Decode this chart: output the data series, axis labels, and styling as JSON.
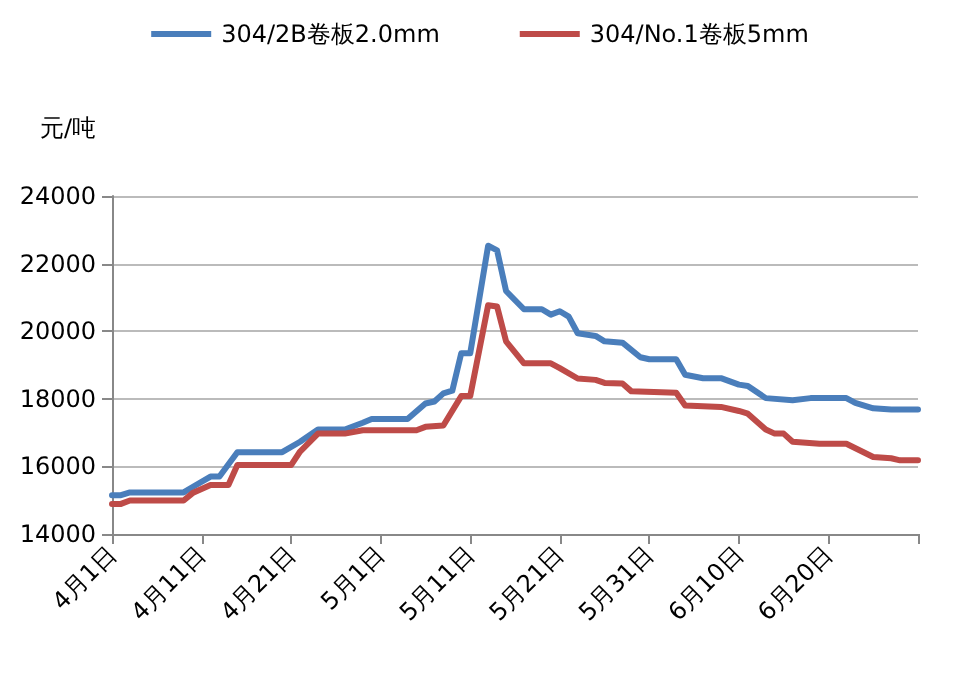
{
  "chart_data": {
    "type": "line",
    "ylabel": "元/吨",
    "legend": "top",
    "grid": "y",
    "marker": "none",
    "line_style": "solid",
    "ylim": [
      14000,
      24000
    ],
    "yticks": [
      14000,
      16000,
      18000,
      20000,
      22000,
      24000
    ],
    "xlim": [
      "--04-01",
      "--06-30"
    ],
    "xticks": [
      {
        "value": "--04-01",
        "label": "4月1日"
      },
      {
        "value": "--04-11",
        "label": "4月11日"
      },
      {
        "value": "--04-21",
        "label": "4月21日"
      },
      {
        "value": "--05-01",
        "label": "5月1日"
      },
      {
        "value": "--05-11",
        "label": "5月11日"
      },
      {
        "value": "--05-21",
        "label": "5月21日"
      },
      {
        "value": "--05-31",
        "label": "5月31日"
      },
      {
        "value": "--06-10",
        "label": "6月10日"
      },
      {
        "value": "--06-20",
        "label": "6月20日"
      },
      {
        "value": "--06-30",
        "label": null
      }
    ],
    "series": [
      {
        "name": "304/2B卷板2.0mm",
        "color": "#4a7ebb",
        "x": [
          "--04-01",
          "--04-02",
          "--04-03",
          "--04-09",
          "--04-10",
          "--04-12",
          "--04-13",
          "--04-15",
          "--04-20",
          "--04-22",
          "--04-24",
          "--04-27",
          "--04-29",
          "--04-30",
          "--05-04",
          "--05-06",
          "--05-07",
          "--05-08",
          "--05-09",
          "--05-10",
          "--05-11",
          "--05-13",
          "--05-14",
          "--05-15",
          "--05-17",
          "--05-19",
          "--05-20",
          "--05-21",
          "--05-22",
          "--05-23",
          "--05-25",
          "--05-26",
          "--05-28",
          "--05-30",
          "--05-31",
          "--06-03",
          "--06-04",
          "--06-06",
          "--06-08",
          "--06-10",
          "--06-11",
          "--06-13",
          "--06-16",
          "--06-18",
          "--06-22",
          "--06-23",
          "--06-25",
          "--06-27",
          "--06-30"
        ],
        "values": [
          15150,
          15150,
          15230,
          15230,
          15390,
          15700,
          15700,
          16420,
          16420,
          16730,
          17090,
          17090,
          17290,
          17400,
          17400,
          17860,
          17920,
          18160,
          18240,
          19350,
          19350,
          22530,
          22390,
          21190,
          20650,
          20650,
          20490,
          20590,
          20430,
          19940,
          19860,
          19700,
          19660,
          19230,
          19170,
          19170,
          18710,
          18610,
          18610,
          18420,
          18380,
          18020,
          17960,
          18020,
          18020,
          17880,
          17720,
          17680,
          17680
        ]
      },
      {
        "name": "304/No.1卷板5mm",
        "color": "#be4b48",
        "x": [
          "--04-01",
          "--04-02",
          "--04-03",
          "--04-09",
          "--04-10",
          "--04-12",
          "--04-14",
          "--04-15",
          "--04-21",
          "--04-22",
          "--04-24",
          "--04-27",
          "--04-29",
          "--05-05",
          "--05-06",
          "--05-08",
          "--05-10",
          "--05-11",
          "--05-13",
          "--05-14",
          "--05-15",
          "--05-17",
          "--05-20",
          "--05-21",
          "--05-23",
          "--05-25",
          "--05-26",
          "--05-28",
          "--05-29",
          "--06-03",
          "--06-04",
          "--06-08",
          "--06-10",
          "--06-11",
          "--06-13",
          "--06-14",
          "--06-15",
          "--06-16",
          "--06-19",
          "--06-22",
          "--06-25",
          "--06-27",
          "--06-28",
          "--06-30"
        ],
        "values": [
          14890,
          14890,
          14990,
          14990,
          15210,
          15450,
          15450,
          16040,
          16040,
          16440,
          16970,
          16970,
          17070,
          17070,
          17170,
          17210,
          18080,
          18080,
          20770,
          20730,
          19700,
          19050,
          19050,
          18910,
          18600,
          18560,
          18470,
          18450,
          18220,
          18180,
          17800,
          17760,
          17640,
          17560,
          17090,
          16970,
          16970,
          16730,
          16670,
          16670,
          16280,
          16240,
          16180,
          16180
        ]
      }
    ]
  }
}
